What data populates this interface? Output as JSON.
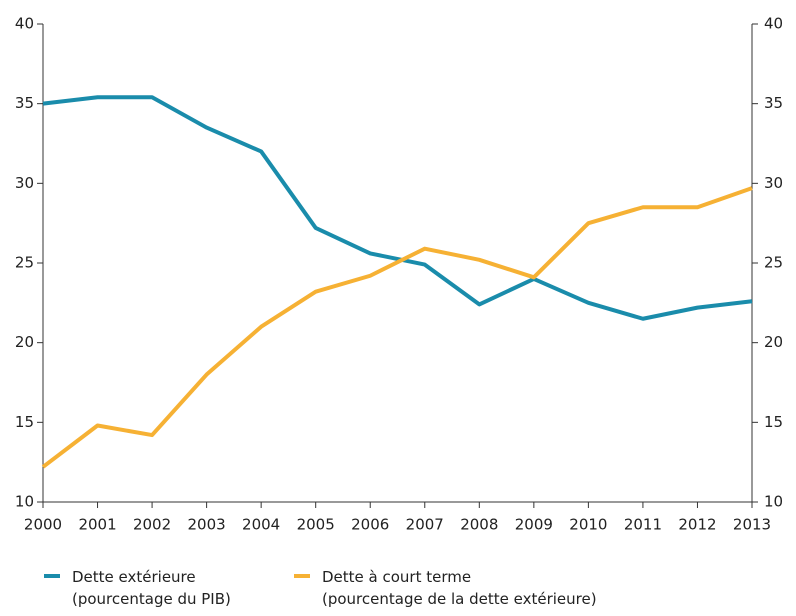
{
  "chart_data": {
    "type": "line",
    "x": [
      2000,
      2001,
      2002,
      2003,
      2004,
      2005,
      2006,
      2007,
      2008,
      2009,
      2010,
      2011,
      2012,
      2013
    ],
    "xlim": [
      2000,
      2013
    ],
    "xticks": [
      2000,
      2001,
      2002,
      2003,
      2004,
      2005,
      2006,
      2007,
      2008,
      2009,
      2010,
      2011,
      2012,
      2013
    ],
    "ylim": [
      10,
      40
    ],
    "yticks": [
      10,
      15,
      20,
      25,
      30,
      35,
      40
    ],
    "y2lim": [
      10,
      40
    ],
    "y2ticks": [
      10,
      15,
      20,
      25,
      30,
      35,
      40
    ],
    "series": [
      {
        "name": "Dette extérieure\n(pourcentage du PIB)",
        "color": "#1a8cab",
        "values": [
          35,
          35.4,
          35.4,
          33.5,
          32,
          27.2,
          25.6,
          24.9,
          22.4,
          24,
          22.5,
          21.5,
          22.2,
          22.6
        ]
      },
      {
        "name": "Dette à court terme\n(pourcentage de la dette extérieure)",
        "color": "#f6b134",
        "axis": "y2",
        "values": [
          12.2,
          14.8,
          14.2,
          18,
          21,
          23.2,
          24.2,
          25.9,
          25.2,
          24.1,
          27.5,
          28.5,
          28.5,
          29.7
        ]
      }
    ]
  }
}
